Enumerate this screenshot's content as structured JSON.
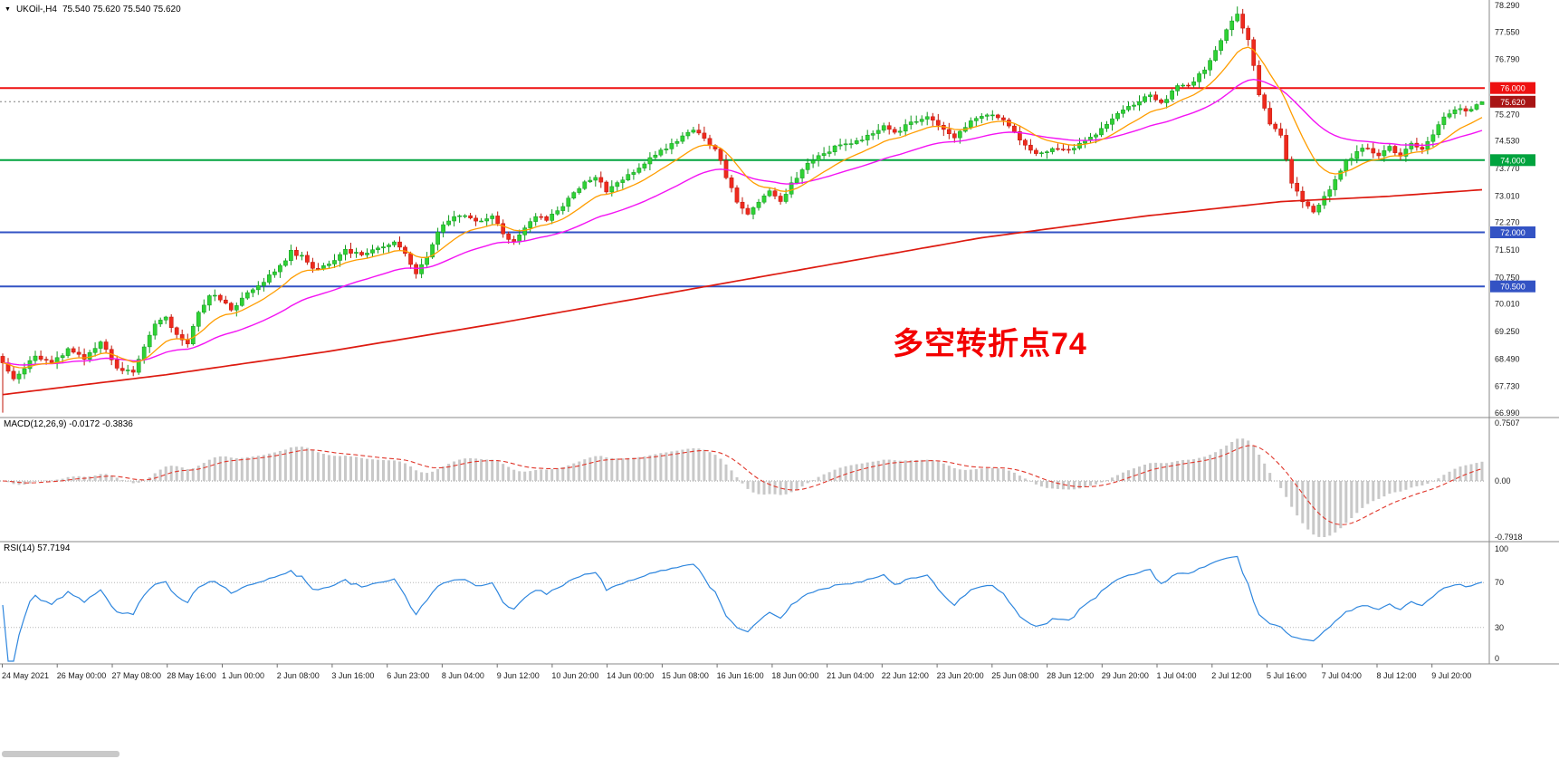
{
  "chart": {
    "symbol_marker": "▼",
    "symbol_timeframe": "UKOil-,H4",
    "ohlc_display": "75.540 75.620 75.540 75.620",
    "annotation": "多空转折点74",
    "annotation_color": "#f30000",
    "current_price_label": "75.620",
    "price_axis_labels": [
      "78.290",
      "77.550",
      "76.790",
      "76.030",
      "75.270",
      "74.530",
      "73.770",
      "73.010",
      "72.270",
      "71.510",
      "70.750",
      "70.010",
      "69.250",
      "68.490",
      "67.730",
      "66.990"
    ],
    "levels": [
      {
        "value": 76.0,
        "label": "76.000",
        "color": "#ee1111",
        "width": 2
      },
      {
        "value": 74.0,
        "label": "74.000",
        "color": "#00a33e",
        "width": 2
      },
      {
        "value": 72.0,
        "label": "72.000",
        "color": "#3353c4",
        "width": 2
      },
      {
        "value": 70.5,
        "label": "70.500",
        "color": "#3353c4",
        "width": 2
      }
    ],
    "colors": {
      "up": "#2fd135",
      "up_border": "#0f9a1d",
      "down": "#ee2a1e",
      "down_border": "#c01408",
      "ma_fast": "#ff9d00",
      "ma_mid": "#f313f3",
      "ma_slow": "#dd1a10",
      "current_price_line": "#808080",
      "badge_current_bg": "#a81414"
    }
  },
  "macd": {
    "label": "MACD(12,26,9) -0.0172 -0.3836",
    "params": "12,26,9",
    "value": -0.0172,
    "signal_value": -0.3836,
    "axis_labels": [
      "0.7507",
      "0.00",
      "-0.7918"
    ],
    "hist_color": "#c8c8c8",
    "signal_color": "#e0372b"
  },
  "rsi": {
    "label": "RSI(14) 57.7194",
    "period": 14,
    "value": 57.7194,
    "axis_labels": [
      "100",
      "70",
      "30",
      "0"
    ],
    "level_values": [
      70,
      30
    ],
    "line_color": "#2e86de"
  },
  "time_axis": {
    "labels": [
      "24 May 2021",
      "26 May 00:00",
      "27 May 08:00",
      "28 May 16:00",
      "1 Jun 00:00",
      "2 Jun 08:00",
      "3 Jun 16:00",
      "6 Jun 23:00",
      "8 Jun 04:00",
      "9 Jun 12:00",
      "10 Jun 20:00",
      "14 Jun 00:00",
      "15 Jun 08:00",
      "16 Jun 16:00",
      "18 Jun 00:00",
      "21 Jun 04:00",
      "22 Jun 12:00",
      "23 Jun 20:00",
      "25 Jun 08:00",
      "28 Jun 12:00",
      "29 Jun 20:00",
      "1 Jul 04:00",
      "2 Jul 12:00",
      "5 Jul 16:00",
      "7 Jul 04:00",
      "8 Jul 12:00",
      "9 Jul 20:00"
    ]
  },
  "chart_data": {
    "type": "candlestick",
    "symbol": "UKOil-",
    "timeframe": "H4",
    "title": "UKOil-,H4 75.540 75.620 75.540 75.620",
    "price_range": [
      66.99,
      78.29
    ],
    "candles_count": 273,
    "last_price": 75.62,
    "ohlc_current": {
      "open": 75.54,
      "high": 75.62,
      "low": 75.54,
      "close": 75.62
    },
    "horizontal_levels": [
      76.0,
      74.0,
      72.0,
      70.5
    ],
    "annotation": "多空转折点74",
    "indicators": [
      "MACD(12,26,9) = -0.0172 / -0.3836",
      "RSI(14) = 57.7194"
    ],
    "macd_axis_range": [
      -0.7918,
      0.7507
    ],
    "rsi_axis_range": [
      0,
      100
    ],
    "price_path_anchors": [
      [
        0,
        68.35
      ],
      [
        2,
        67.95
      ],
      [
        4,
        68.25
      ],
      [
        6,
        68.55
      ],
      [
        9,
        68.35
      ],
      [
        12,
        68.75
      ],
      [
        15,
        68.5
      ],
      [
        18,
        68.95
      ],
      [
        21,
        68.25
      ],
      [
        24,
        68.15
      ],
      [
        26,
        68.85
      ],
      [
        28,
        69.45
      ],
      [
        30,
        69.65
      ],
      [
        32,
        69.15
      ],
      [
        34,
        68.95
      ],
      [
        36,
        69.75
      ],
      [
        38,
        70.25
      ],
      [
        40,
        70.15
      ],
      [
        42,
        69.85
      ],
      [
        45,
        70.35
      ],
      [
        48,
        70.65
      ],
      [
        51,
        71.05
      ],
      [
        53,
        71.45
      ],
      [
        55,
        71.35
      ],
      [
        57,
        70.95
      ],
      [
        60,
        71.15
      ],
      [
        63,
        71.5
      ],
      [
        66,
        71.4
      ],
      [
        69,
        71.6
      ],
      [
        72,
        71.75
      ],
      [
        74,
        71.45
      ],
      [
        76,
        70.85
      ],
      [
        78,
        71.35
      ],
      [
        80,
        72.05
      ],
      [
        82,
        72.35
      ],
      [
        85,
        72.5
      ],
      [
        88,
        72.3
      ],
      [
        90,
        72.45
      ],
      [
        92,
        71.95
      ],
      [
        94,
        71.75
      ],
      [
        96,
        72.15
      ],
      [
        98,
        72.45
      ],
      [
        100,
        72.35
      ],
      [
        103,
        72.75
      ],
      [
        106,
        73.25
      ],
      [
        109,
        73.55
      ],
      [
        111,
        73.15
      ],
      [
        113,
        73.35
      ],
      [
        116,
        73.65
      ],
      [
        119,
        74.05
      ],
      [
        122,
        74.35
      ],
      [
        125,
        74.65
      ],
      [
        127,
        74.85
      ],
      [
        129,
        74.55
      ],
      [
        131,
        74.35
      ],
      [
        133,
        73.55
      ],
      [
        135,
        72.85
      ],
      [
        137,
        72.55
      ],
      [
        139,
        72.85
      ],
      [
        141,
        73.15
      ],
      [
        143,
        72.85
      ],
      [
        145,
        73.35
      ],
      [
        147,
        73.75
      ],
      [
        150,
        74.15
      ],
      [
        153,
        74.35
      ],
      [
        156,
        74.45
      ],
      [
        159,
        74.65
      ],
      [
        162,
        74.95
      ],
      [
        164,
        74.75
      ],
      [
        167,
        75.05
      ],
      [
        170,
        75.25
      ],
      [
        173,
        74.85
      ],
      [
        175,
        74.65
      ],
      [
        178,
        75.05
      ],
      [
        181,
        75.3
      ],
      [
        184,
        75.1
      ],
      [
        186,
        74.75
      ],
      [
        188,
        74.45
      ],
      [
        190,
        74.15
      ],
      [
        193,
        74.35
      ],
      [
        196,
        74.25
      ],
      [
        199,
        74.55
      ],
      [
        202,
        74.85
      ],
      [
        205,
        75.25
      ],
      [
        208,
        75.55
      ],
      [
        211,
        75.85
      ],
      [
        213,
        75.55
      ],
      [
        216,
        76.05
      ],
      [
        219,
        76.15
      ],
      [
        221,
        76.55
      ],
      [
        223,
        77.05
      ],
      [
        225,
        77.65
      ],
      [
        227,
        78.05
      ],
      [
        229,
        77.35
      ],
      [
        231,
        75.85
      ],
      [
        233,
        75.05
      ],
      [
        235,
        74.65
      ],
      [
        237,
        73.35
      ],
      [
        239,
        72.85
      ],
      [
        241,
        72.55
      ],
      [
        243,
        72.95
      ],
      [
        245,
        73.45
      ],
      [
        247,
        73.95
      ],
      [
        249,
        74.25
      ],
      [
        251,
        74.35
      ],
      [
        253,
        74.15
      ],
      [
        255,
        74.35
      ],
      [
        257,
        74.15
      ],
      [
        259,
        74.45
      ],
      [
        261,
        74.35
      ],
      [
        263,
        74.75
      ],
      [
        265,
        75.15
      ],
      [
        267,
        75.45
      ],
      [
        269,
        75.35
      ],
      [
        271,
        75.55
      ],
      [
        272,
        75.62
      ]
    ],
    "ma_slow_anchors": [
      [
        0,
        67.5
      ],
      [
        30,
        68.05
      ],
      [
        60,
        68.7
      ],
      [
        90,
        69.45
      ],
      [
        120,
        70.25
      ],
      [
        150,
        71.05
      ],
      [
        180,
        71.85
      ],
      [
        210,
        72.45
      ],
      [
        235,
        72.85
      ],
      [
        255,
        73.0
      ],
      [
        272,
        73.18
      ]
    ],
    "wick_overrides": {
      "0": {
        "low": 67.0
      },
      "227": {
        "high": 78.26
      }
    }
  }
}
